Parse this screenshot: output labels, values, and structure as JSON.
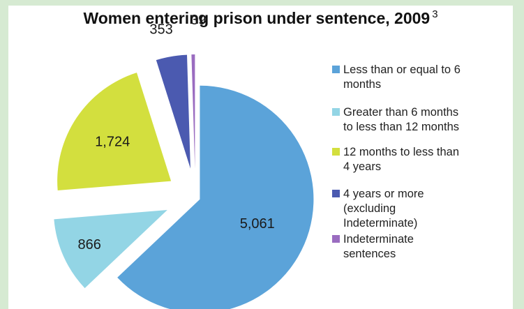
{
  "chart_data": {
    "type": "pie",
    "title": "Women entering prison under sentence, 2009",
    "title_note": "3",
    "legend_position": "right",
    "slices": [
      {
        "label": "Less than or equal to 6 months",
        "value": 5061,
        "value_label": "5,061",
        "color": "#5ba3d9"
      },
      {
        "label": "Greater than 6 months to less than 12 months",
        "value": 866,
        "value_label": "866",
        "color": "#93d5e5"
      },
      {
        "label": "12 months to less than 4 years",
        "value": 1724,
        "value_label": "1,724",
        "color": "#d3df3e"
      },
      {
        "label": "4 years or more (excluding Indeterminate)",
        "value": 353,
        "value_label": "353",
        "color": "#4b5ab0"
      },
      {
        "label": "Indeterminate sentences",
        "value": 39,
        "value_label": "39",
        "color": "#9a6cc0"
      }
    ]
  },
  "legend": {
    "items": [
      {
        "lines": [
          "Less than or equal to 6",
          "months"
        ],
        "color": "#5ba3d9"
      },
      {
        "lines": [
          "Greater than 6 months",
          "to less than 12 months"
        ],
        "color": "#93d5e5"
      },
      {
        "lines": [
          "12 months to less than",
          "4 years"
        ],
        "color": "#d3df3e"
      },
      {
        "lines": [
          "4 years or more",
          "(excluding",
          "Indeterminate)"
        ],
        "color": "#4b5ab0"
      },
      {
        "lines": [
          "Indeterminate",
          "sentences"
        ],
        "color": "#9a6cc0"
      }
    ]
  }
}
